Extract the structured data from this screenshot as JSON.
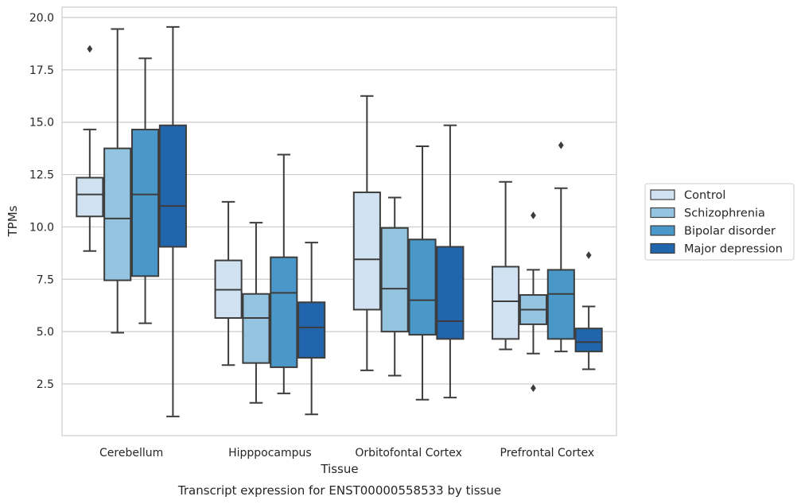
{
  "chart_data": {
    "type": "box",
    "title": "",
    "caption": "Transcript expression for ENST00000558533 by tissue",
    "xlabel": "Tissue",
    "ylabel": "TPMs",
    "ylim": [
      0,
      20.5
    ],
    "yticks": [
      2.5,
      5.0,
      7.5,
      10.0,
      12.5,
      15.0,
      17.5,
      20.0
    ],
    "ytick_labels": [
      "2.5",
      "5.0",
      "7.5",
      "10.0",
      "12.5",
      "15.0",
      "17.5",
      "20.0"
    ],
    "grid": "horizontal",
    "legend_position": "right",
    "categories": [
      "Cerebellum",
      "Hipppocampus",
      "Orbitofontal Cortex",
      "Prefrontal Cortex"
    ],
    "series": [
      {
        "name": "Control",
        "color": "#d0e1f2",
        "boxes": [
          {
            "whislo": 8.85,
            "q1": 10.5,
            "med": 11.55,
            "q3": 12.35,
            "whishi": 14.65,
            "fliers": [
              18.5
            ]
          },
          {
            "whislo": 3.4,
            "q1": 5.65,
            "med": 7.0,
            "q3": 8.4,
            "whishi": 11.2,
            "fliers": []
          },
          {
            "whislo": 3.15,
            "q1": 6.05,
            "med": 8.45,
            "q3": 11.65,
            "whishi": 16.25,
            "fliers": []
          },
          {
            "whislo": 4.15,
            "q1": 4.65,
            "med": 6.45,
            "q3": 8.1,
            "whishi": 12.15,
            "fliers": []
          }
        ]
      },
      {
        "name": "Schizophrenia",
        "color": "#94c4df",
        "boxes": [
          {
            "whislo": 4.95,
            "q1": 7.45,
            "med": 10.4,
            "q3": 13.75,
            "whishi": 19.45,
            "fliers": []
          },
          {
            "whislo": 1.6,
            "q1": 3.5,
            "med": 5.65,
            "q3": 6.8,
            "whishi": 10.2,
            "fliers": []
          },
          {
            "whislo": 2.9,
            "q1": 5.0,
            "med": 7.05,
            "q3": 9.95,
            "whishi": 11.4,
            "fliers": []
          },
          {
            "whislo": 3.95,
            "q1": 5.35,
            "med": 6.05,
            "q3": 6.75,
            "whishi": 7.95,
            "fliers": [
              10.55,
              2.3
            ]
          }
        ]
      },
      {
        "name": "Bipolar disorder",
        "color": "#4a98c9",
        "boxes": [
          {
            "whislo": 5.4,
            "q1": 7.65,
            "med": 11.55,
            "q3": 14.65,
            "whishi": 18.05,
            "fliers": []
          },
          {
            "whislo": 2.05,
            "q1": 3.3,
            "med": 6.85,
            "q3": 8.55,
            "whishi": 13.45,
            "fliers": []
          },
          {
            "whislo": 1.75,
            "q1": 4.85,
            "med": 6.5,
            "q3": 9.4,
            "whishi": 13.85,
            "fliers": []
          },
          {
            "whislo": 4.05,
            "q1": 4.65,
            "med": 6.8,
            "q3": 7.95,
            "whishi": 11.85,
            "fliers": [
              13.9
            ]
          }
        ]
      },
      {
        "name": "Major depression",
        "color": "#2166ac",
        "boxes": [
          {
            "whislo": 0.95,
            "q1": 9.05,
            "med": 11.0,
            "q3": 14.85,
            "whishi": 19.55,
            "fliers": []
          },
          {
            "whislo": 1.05,
            "q1": 3.75,
            "med": 5.2,
            "q3": 6.4,
            "whishi": 9.25,
            "fliers": []
          },
          {
            "whislo": 1.85,
            "q1": 4.65,
            "med": 5.5,
            "q3": 9.05,
            "whishi": 14.85,
            "fliers": []
          },
          {
            "whislo": 3.2,
            "q1": 4.05,
            "med": 4.5,
            "q3": 5.15,
            "whishi": 6.2,
            "fliers": [
              8.65
            ]
          }
        ]
      }
    ]
  }
}
